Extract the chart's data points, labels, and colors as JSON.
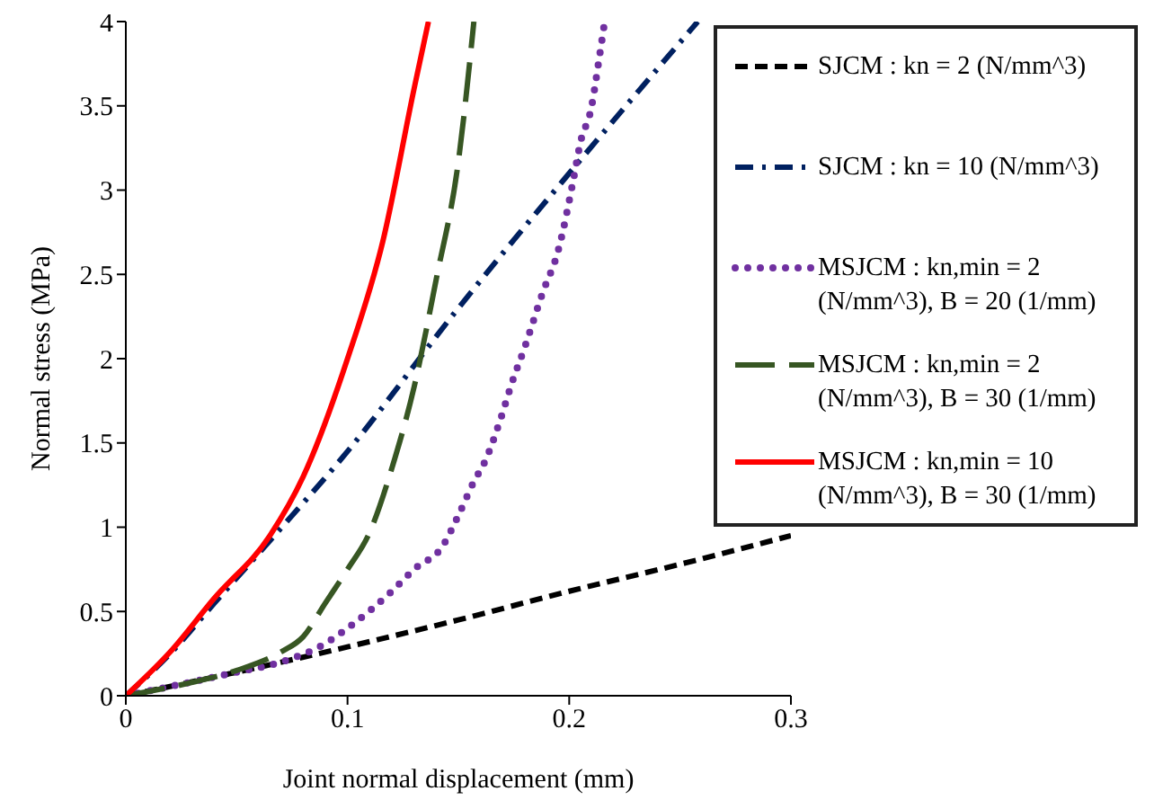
{
  "chart_data": {
    "type": "line",
    "xlabel": "Joint normal displacement (mm)",
    "ylabel": "Normal stress (MPa)",
    "xlim": [
      0,
      0.3
    ],
    "xticks": [
      0,
      0.1,
      0.2,
      0.3
    ],
    "ylim": [
      0,
      4
    ],
    "yticks": [
      0,
      0.5,
      1,
      1.5,
      2,
      2.5,
      3,
      3.5,
      4
    ],
    "grid": false,
    "legend": "top right",
    "marker": "none",
    "series": [
      {
        "name": "SJCM : kn = 2 (N/mm^3)",
        "color": "#000000",
        "line_style": "dashed",
        "x": [
          0,
          0.05,
          0.1,
          0.15,
          0.2,
          0.25,
          0.3
        ],
        "values": [
          0,
          0.14,
          0.29,
          0.45,
          0.62,
          0.78,
          0.95
        ]
      },
      {
        "name": "SJCM : kn = 10 (N/mm^3)",
        "color": "#002060",
        "line_style": "dashed",
        "x": [
          0,
          0.02,
          0.04,
          0.065,
          0.1,
          0.15,
          0.2,
          0.258
        ],
        "values": [
          0,
          0.25,
          0.55,
          0.92,
          1.45,
          2.3,
          3.1,
          4.0
        ]
      },
      {
        "name": "MSJCM : kn,min = 2 (N/mm^3), B = 20 (1/mm)",
        "color": "#7030a0",
        "line_style": "dotted",
        "x": [
          0,
          0.05,
          0.07,
          0.09,
          0.1,
          0.12,
          0.13,
          0.143,
          0.15,
          0.157,
          0.162,
          0.169,
          0.174,
          0.18,
          0.188,
          0.195,
          0.202,
          0.205,
          0.21,
          0.2135,
          0.216
        ],
        "values": [
          0,
          0.14,
          0.2,
          0.31,
          0.4,
          0.62,
          0.75,
          0.89,
          1.07,
          1.27,
          1.39,
          1.64,
          1.85,
          2.07,
          2.39,
          2.64,
          3.07,
          3.28,
          3.49,
          3.78,
          4.0
        ]
      },
      {
        "name": "MSJCM : kn,min = 2 (N/mm^3), B = 30 (1/mm)",
        "color": "#375623",
        "line_style": "dashed",
        "x": [
          0,
          0.03,
          0.05,
          0.07,
          0.08,
          0.09,
          0.1,
          0.11,
          0.12,
          0.13,
          0.14,
          0.15,
          0.157
        ],
        "values": [
          0,
          0.08,
          0.15,
          0.26,
          0.35,
          0.55,
          0.75,
          0.97,
          1.35,
          1.83,
          2.47,
          3.17,
          4.0
        ]
      },
      {
        "name": "MSJCM : kn,min = 10 (N/mm^3), B = 30 (1/mm)",
        "color": "#ff0000",
        "line_style": "solid",
        "x": [
          0,
          0.02,
          0.04,
          0.065,
          0.08,
          0.1,
          0.116,
          0.13,
          0.1365
        ],
        "values": [
          0,
          0.26,
          0.58,
          0.95,
          1.3,
          2.0,
          2.7,
          3.6,
          4.0
        ]
      }
    ]
  }
}
